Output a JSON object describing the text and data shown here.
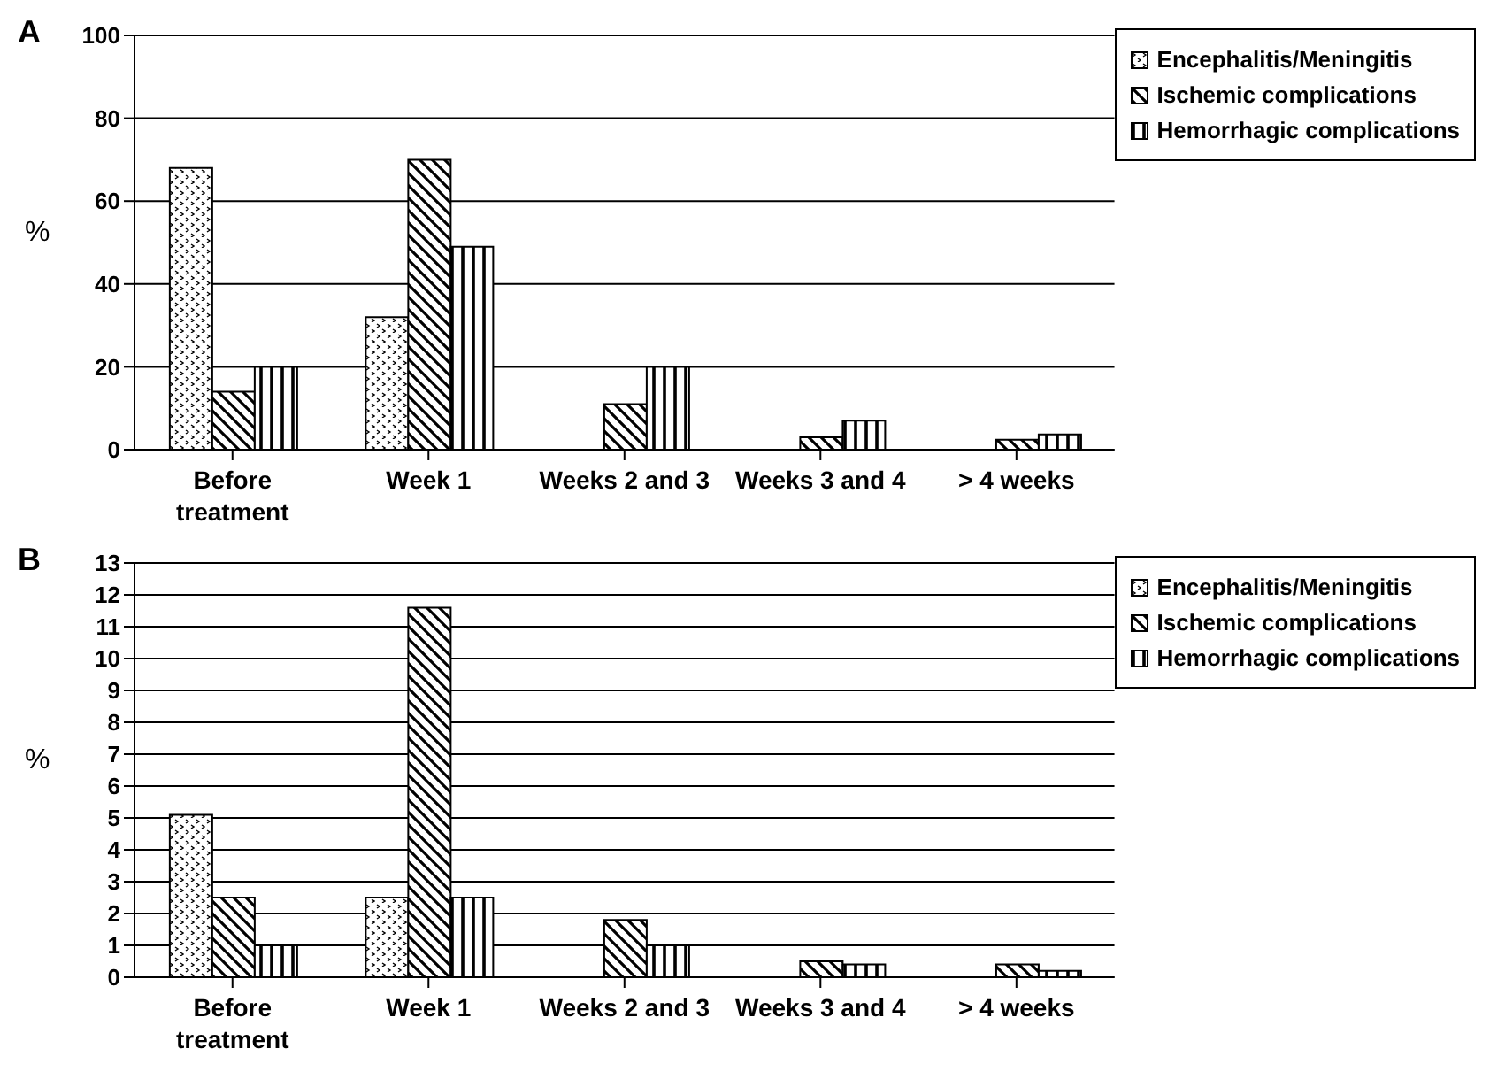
{
  "chart_data": [
    {
      "type": "bar",
      "title": "A",
      "ylabel": "%",
      "categories": [
        "Before treatment",
        "Week 1",
        "Weeks 2 and 3",
        "Weeks 3 and 4",
        "> 4 weeks"
      ],
      "series": [
        {
          "name": "Encephalitis/Meningitis",
          "color": "#000000",
          "values": [
            68,
            32,
            null,
            null,
            null
          ]
        },
        {
          "name": "Ischemic complications",
          "color": "#000000",
          "values": [
            14,
            70,
            11,
            3,
            2.4
          ]
        },
        {
          "name": "Hemorrhagic complications",
          "color": "#000000",
          "values": [
            20,
            49,
            20,
            7,
            3.7
          ]
        }
      ],
      "ylim": [
        0,
        100
      ],
      "yticks": [
        0,
        20,
        40,
        60,
        80,
        100
      ],
      "grid": "y",
      "legend": "top right"
    },
    {
      "type": "bar",
      "title": "B",
      "ylabel": "%",
      "categories": [
        "Before treatment",
        "Week 1",
        "Weeks 2 and 3",
        "Weeks 3 and 4",
        "> 4 weeks"
      ],
      "series": [
        {
          "name": "Encephalitis/Meningitis",
          "color": "#000000",
          "values": [
            5.1,
            2.5,
            null,
            null,
            null
          ]
        },
        {
          "name": "Ischemic complications",
          "color": "#000000",
          "values": [
            2.5,
            11.6,
            1.8,
            0.5,
            0.4
          ]
        },
        {
          "name": "Hemorrhagic complications",
          "color": "#000000",
          "values": [
            1,
            2.5,
            1,
            0.4,
            0.2
          ]
        }
      ],
      "ylim": [
        0,
        13
      ],
      "yticks": [
        0,
        1,
        2,
        3,
        4,
        5,
        6,
        7,
        8,
        9,
        10,
        11,
        12,
        13
      ],
      "grid": "y",
      "legend": "top right"
    }
  ]
}
